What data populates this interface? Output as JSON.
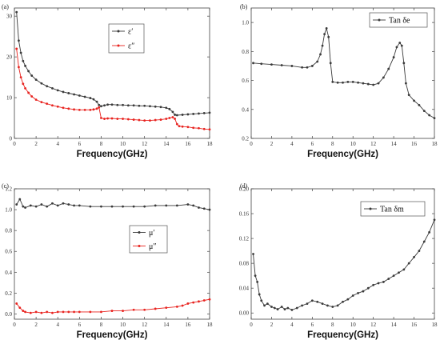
{
  "chart_data": [
    {
      "panel": "(a)",
      "type": "line",
      "xlabel": "Frequency(GHz)",
      "ylabel": "",
      "xlim": [
        0,
        18
      ],
      "ylim": [
        0,
        32
      ],
      "xticks": [
        0,
        2,
        4,
        6,
        8,
        10,
        12,
        14,
        16,
        18
      ],
      "yticks": [
        0,
        10,
        20,
        30
      ],
      "legend_position": "top-right",
      "series": [
        {
          "name": "ε′",
          "color": "#3a3a3a",
          "x": [
            0.2,
            0.4,
            0.6,
            0.8,
            1,
            1.3,
            1.6,
            2,
            2.5,
            3,
            3.5,
            4,
            4.5,
            5,
            5.5,
            6,
            6.5,
            7,
            7.3,
            7.6,
            7.8,
            8,
            8.3,
            8.6,
            9,
            9.5,
            10,
            10.5,
            11,
            11.5,
            12,
            12.5,
            13,
            13.5,
            14,
            14.3,
            14.6,
            14.8,
            15,
            15.5,
            16,
            16.5,
            17,
            17.5,
            18
          ],
          "y": [
            31,
            24,
            21,
            19,
            17.8,
            16.5,
            15.4,
            14.4,
            13.5,
            12.8,
            12.3,
            11.8,
            11.4,
            11.1,
            10.8,
            10.5,
            10.2,
            9.9,
            9.6,
            9,
            8.2,
            7.9,
            8.1,
            8.3,
            8.3,
            8.2,
            8.2,
            8.1,
            8.1,
            8,
            8,
            7.9,
            7.8,
            7.7,
            7.5,
            7.2,
            6.5,
            5.8,
            5.7,
            5.8,
            5.9,
            6,
            6.1,
            6.2,
            6.3
          ]
        },
        {
          "name": "ε″",
          "color": "#e8231f",
          "x": [
            0.2,
            0.4,
            0.6,
            0.8,
            1,
            1.3,
            1.6,
            2,
            2.5,
            3,
            3.5,
            4,
            4.5,
            5,
            5.5,
            6,
            6.5,
            7,
            7.3,
            7.6,
            7.8,
            8,
            8.3,
            8.6,
            9,
            9.5,
            10,
            10.5,
            11,
            11.5,
            12,
            12.5,
            13,
            13.5,
            14,
            14.3,
            14.6,
            14.8,
            15,
            15.2,
            15.5,
            16,
            16.5,
            17,
            17.5,
            18
          ],
          "y": [
            22,
            17.5,
            15,
            13.4,
            12.3,
            11.2,
            10.3,
            9.5,
            8.9,
            8.5,
            8.1,
            7.8,
            7.5,
            7.3,
            7.1,
            7,
            7,
            7,
            7.1,
            7.3,
            7.6,
            5,
            4.8,
            4.9,
            4.9,
            4.8,
            4.8,
            4.7,
            4.6,
            4.5,
            4.4,
            4.4,
            4.5,
            4.6,
            4.8,
            5,
            5.2,
            4.8,
            3.5,
            3,
            2.9,
            2.8,
            2.6,
            2.5,
            2.3,
            2.2
          ]
        }
      ]
    },
    {
      "panel": "(b)",
      "type": "line",
      "xlabel": "Frequency(GHz)",
      "ylabel": "",
      "xlim": [
        0,
        18
      ],
      "ylim": [
        0.2,
        1.1
      ],
      "xticks": [
        0,
        2,
        4,
        6,
        8,
        10,
        12,
        14,
        16,
        18
      ],
      "yticks": [
        0.2,
        0.4,
        0.6,
        0.8,
        1.0
      ],
      "legend_position": "top-right",
      "series": [
        {
          "name": "Tan δe",
          "color": "#3a3a3a",
          "x": [
            0.2,
            1,
            2,
            3,
            4,
            5,
            5.5,
            6,
            6.5,
            6.8,
            7,
            7.2,
            7.4,
            7.6,
            7.8,
            8,
            8.5,
            9,
            9.5,
            10,
            10.5,
            11,
            11.5,
            12,
            12.5,
            13,
            13.5,
            14,
            14.3,
            14.6,
            14.8,
            15,
            15.2,
            15.5,
            16,
            16.5,
            17,
            17.5,
            18
          ],
          "y": [
            0.72,
            0.715,
            0.71,
            0.705,
            0.7,
            0.69,
            0.69,
            0.7,
            0.73,
            0.78,
            0.84,
            0.92,
            0.96,
            0.9,
            0.72,
            0.59,
            0.585,
            0.585,
            0.59,
            0.59,
            0.585,
            0.58,
            0.575,
            0.57,
            0.58,
            0.62,
            0.68,
            0.76,
            0.83,
            0.86,
            0.84,
            0.72,
            0.58,
            0.5,
            0.46,
            0.43,
            0.39,
            0.36,
            0.34
          ]
        }
      ]
    },
    {
      "panel": "(c)",
      "type": "line",
      "xlabel": "Frequency(GHz)",
      "ylabel": "",
      "xlim": [
        0,
        18
      ],
      "ylim": [
        -0.05,
        1.2
      ],
      "xticks": [
        0,
        2,
        4,
        6,
        8,
        10,
        12,
        14,
        16,
        18
      ],
      "yticks": [
        0.0,
        0.2,
        0.4,
        0.6,
        0.8,
        1.0,
        1.2
      ],
      "legend_position": "center-right",
      "series": [
        {
          "name": "μ′",
          "color": "#3a3a3a",
          "x": [
            0.2,
            0.5,
            0.8,
            1,
            1.5,
            2,
            2.5,
            3,
            3.5,
            4,
            4.5,
            5,
            5.5,
            6,
            7,
            8,
            9,
            10,
            11,
            12,
            13,
            14,
            15,
            16,
            16.5,
            17,
            17.5,
            18
          ],
          "y": [
            1.05,
            1.1,
            1.03,
            1.02,
            1.04,
            1.03,
            1.05,
            1.03,
            1.06,
            1.04,
            1.06,
            1.05,
            1.04,
            1.04,
            1.03,
            1.03,
            1.03,
            1.03,
            1.03,
            1.03,
            1.04,
            1.04,
            1.04,
            1.05,
            1.04,
            1.02,
            1.01,
            1.0
          ]
        },
        {
          "name": "μ″",
          "color": "#e8231f",
          "x": [
            0.2,
            0.5,
            0.8,
            1,
            1.5,
            2,
            2.5,
            3,
            3.5,
            4,
            4.5,
            5,
            5.5,
            6,
            7,
            8,
            9,
            10,
            11,
            12,
            13,
            14,
            15,
            15.5,
            16,
            16.5,
            17,
            17.5,
            18
          ],
          "y": [
            0.1,
            0.06,
            0.03,
            0.02,
            0.01,
            0.02,
            0.01,
            0.02,
            0.01,
            0.02,
            0.02,
            0.02,
            0.02,
            0.02,
            0.02,
            0.02,
            0.03,
            0.03,
            0.04,
            0.04,
            0.05,
            0.06,
            0.07,
            0.08,
            0.1,
            0.11,
            0.12,
            0.13,
            0.14
          ]
        }
      ]
    },
    {
      "panel": "(d)",
      "type": "line",
      "xlabel": "Frequency(GHz)",
      "ylabel": "",
      "xlim": [
        0,
        18
      ],
      "ylim": [
        -0.01,
        0.2
      ],
      "xticks": [
        0,
        2,
        4,
        6,
        8,
        10,
        12,
        14,
        16,
        18
      ],
      "yticks": [
        0.0,
        0.04,
        0.08,
        0.12,
        0.16,
        0.2
      ],
      "legend_position": "top-left",
      "series": [
        {
          "name": "Tan δm",
          "color": "#3a3a3a",
          "x": [
            0.2,
            0.4,
            0.6,
            0.8,
            1,
            1.3,
            1.6,
            2,
            2.3,
            2.6,
            3,
            3.3,
            3.6,
            4,
            4.5,
            5,
            5.5,
            6,
            6.5,
            7,
            7.5,
            8,
            8.5,
            9,
            9.5,
            10,
            10.5,
            11,
            11.5,
            12,
            12.5,
            13,
            13.5,
            14,
            14.5,
            15,
            15.5,
            16,
            16.5,
            17,
            17.5,
            18
          ],
          "y": [
            0.095,
            0.06,
            0.05,
            0.03,
            0.02,
            0.012,
            0.015,
            0.01,
            0.008,
            0.006,
            0.01,
            0.006,
            0.008,
            0.005,
            0.008,
            0.012,
            0.015,
            0.02,
            0.018,
            0.015,
            0.012,
            0.01,
            0.012,
            0.018,
            0.022,
            0.028,
            0.032,
            0.035,
            0.04,
            0.045,
            0.048,
            0.05,
            0.055,
            0.06,
            0.065,
            0.07,
            0.08,
            0.09,
            0.1,
            0.115,
            0.13,
            0.15
          ]
        }
      ]
    }
  ]
}
